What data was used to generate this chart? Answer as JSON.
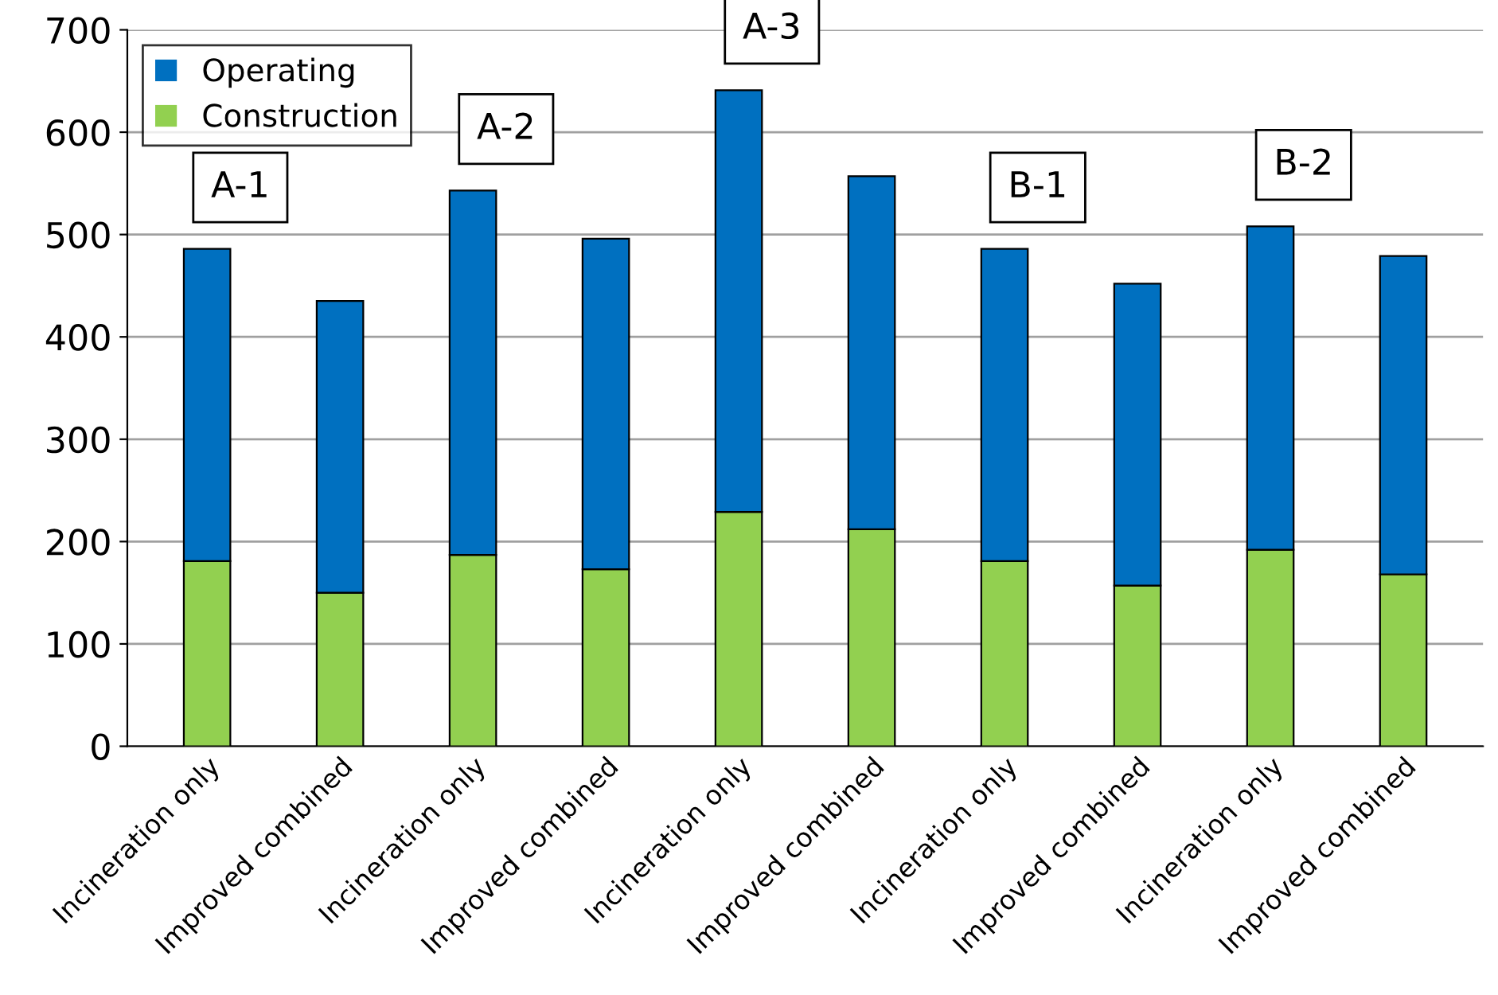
{
  "chart_data": {
    "type": "bar",
    "stacked": true,
    "categories": [
      "Incineration only",
      "Improved combined",
      "Incineration only",
      "Improved combined",
      "Incineration only",
      "Improved combined",
      "Incineration only",
      "Improved combined",
      "Incineration only",
      "Improved combined"
    ],
    "series": [
      {
        "name": "Construction",
        "color": "#92d050",
        "values": [
          181,
          150,
          187,
          173,
          229,
          212,
          181,
          157,
          192,
          168
        ]
      },
      {
        "name": "Operating",
        "color": "#0070c0",
        "values": [
          305,
          285,
          356,
          323,
          412,
          345,
          305,
          295,
          316,
          311
        ]
      }
    ],
    "annotations": [
      "A-1",
      "A-2",
      "A-3",
      "B-1",
      "B-2"
    ],
    "ylim": [
      0,
      700
    ],
    "yticks": [
      0,
      100,
      200,
      300,
      400,
      500,
      600,
      700
    ],
    "grid": "y",
    "legend": "top left"
  }
}
